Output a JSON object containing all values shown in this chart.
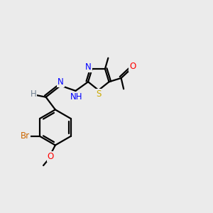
{
  "background_color": "#ebebeb",
  "atom_colors": {
    "C": "#000000",
    "H": "#708090",
    "N": "#0000ff",
    "O": "#ff0000",
    "S": "#ccaa00",
    "Br": "#cc6600"
  },
  "bond_color": "#000000",
  "bond_width": 1.6,
  "font_size": 8.5
}
